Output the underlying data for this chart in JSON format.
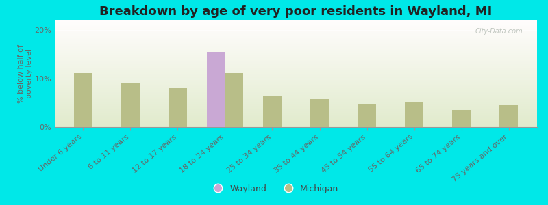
{
  "title": "Breakdown by age of very poor residents in Wayland, MI",
  "ylabel": "% below half of\npoverty level",
  "categories": [
    "Under 6 years",
    "6 to 11 years",
    "12 to 17 years",
    "18 to 24 years",
    "25 to 34 years",
    "35 to 44 years",
    "45 to 54 years",
    "55 to 64 years",
    "65 to 74 years",
    "75 years and over"
  ],
  "wayland_values": [
    null,
    null,
    null,
    15.5,
    null,
    null,
    null,
    null,
    null,
    null
  ],
  "michigan_values": [
    11.2,
    9.0,
    8.0,
    11.2,
    6.5,
    5.8,
    4.8,
    5.2,
    3.5,
    4.5
  ],
  "wayland_color": "#c9a8d4",
  "michigan_color": "#b8be88",
  "background_color": "#00e8e8",
  "ylim": [
    0,
    22
  ],
  "yticks": [
    0,
    10,
    20
  ],
  "ytick_labels": [
    "0%",
    "10%",
    "20%"
  ],
  "title_fontsize": 13,
  "axis_label_fontsize": 8,
  "tick_label_fontsize": 8,
  "bar_width": 0.38,
  "watermark": "City-Data.com"
}
